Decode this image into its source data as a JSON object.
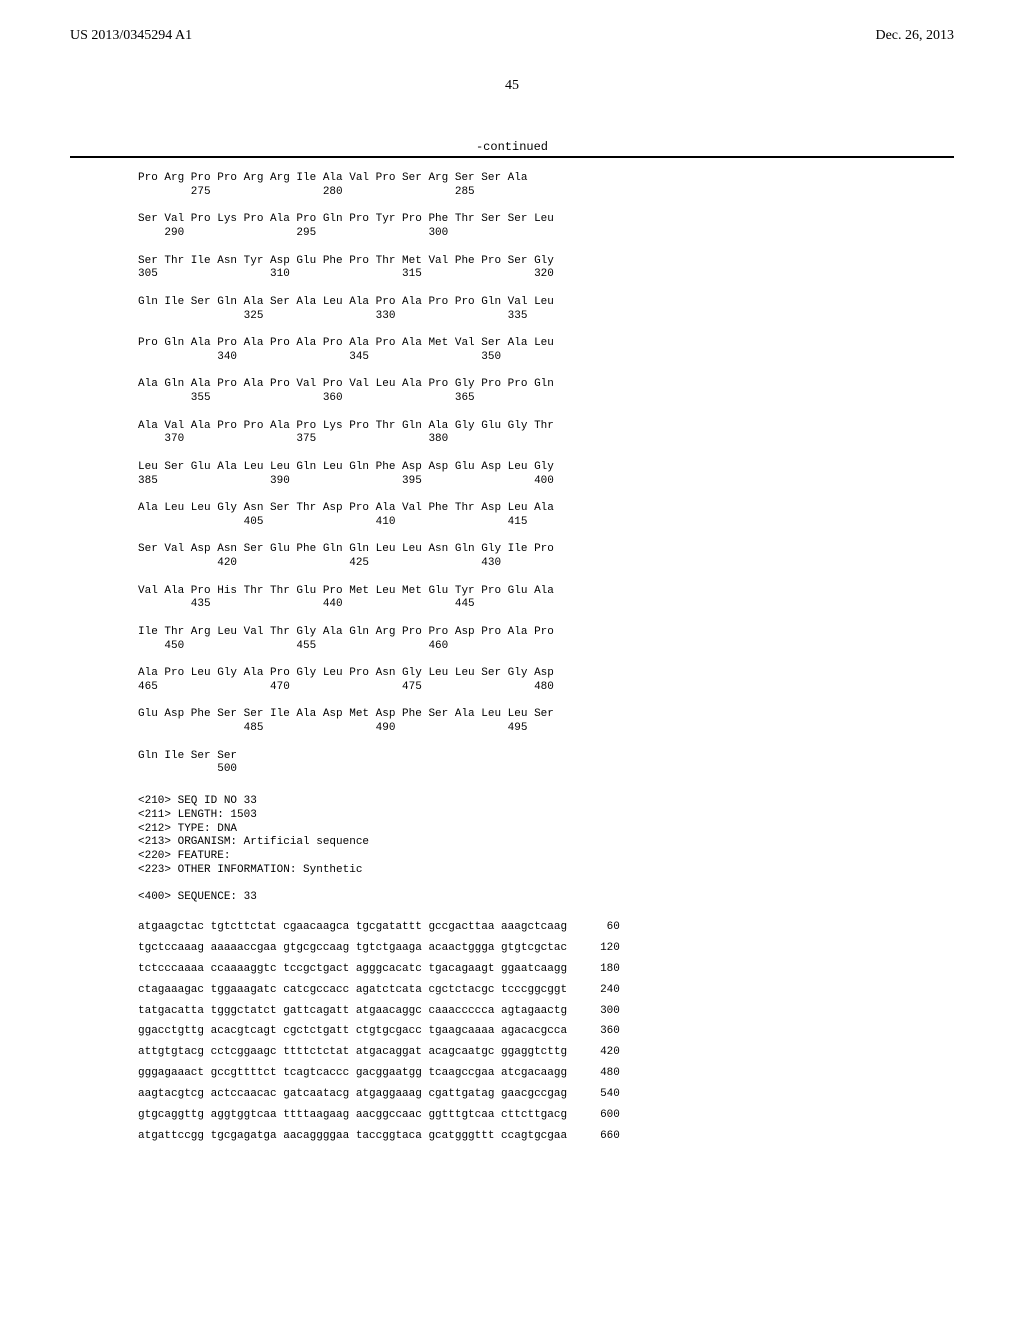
{
  "header": {
    "patent_number": "US 2013/0345294 A1",
    "pub_date": "Dec. 26, 2013"
  },
  "page_number": "45",
  "continued_label": "-continued",
  "protein_sequence": "Pro Arg Pro Pro Arg Arg Ile Ala Val Pro Ser Arg Ser Ser Ala\n        275                 280                 285\n\nSer Val Pro Lys Pro Ala Pro Gln Pro Tyr Pro Phe Thr Ser Ser Leu\n    290                 295                 300\n\nSer Thr Ile Asn Tyr Asp Glu Phe Pro Thr Met Val Phe Pro Ser Gly\n305                 310                 315                 320\n\nGln Ile Ser Gln Ala Ser Ala Leu Ala Pro Ala Pro Pro Gln Val Leu\n                325                 330                 335\n\nPro Gln Ala Pro Ala Pro Ala Pro Ala Pro Ala Met Val Ser Ala Leu\n            340                 345                 350\n\nAla Gln Ala Pro Ala Pro Val Pro Val Leu Ala Pro Gly Pro Pro Gln\n        355                 360                 365\n\nAla Val Ala Pro Pro Ala Pro Lys Pro Thr Gln Ala Gly Glu Gly Thr\n    370                 375                 380\n\nLeu Ser Glu Ala Leu Leu Gln Leu Gln Phe Asp Asp Glu Asp Leu Gly\n385                 390                 395                 400\n\nAla Leu Leu Gly Asn Ser Thr Asp Pro Ala Val Phe Thr Asp Leu Ala\n                405                 410                 415\n\nSer Val Asp Asn Ser Glu Phe Gln Gln Leu Leu Asn Gln Gly Ile Pro\n            420                 425                 430\n\nVal Ala Pro His Thr Thr Glu Pro Met Leu Met Glu Tyr Pro Glu Ala\n        435                 440                 445\n\nIle Thr Arg Leu Val Thr Gly Ala Gln Arg Pro Pro Asp Pro Ala Pro\n    450                 455                 460\n\nAla Pro Leu Gly Ala Pro Gly Leu Pro Asn Gly Leu Leu Ser Gly Asp\n465                 470                 475                 480\n\nGlu Asp Phe Ser Ser Ile Ala Asp Met Asp Phe Ser Ala Leu Leu Ser\n                485                 490                 495\n\nGln Ile Ser Ser\n            500",
  "seq_meta": "<210> SEQ ID NO 33\n<211> LENGTH: 1503\n<212> TYPE: DNA\n<213> ORGANISM: Artificial sequence\n<220> FEATURE:\n<223> OTHER INFORMATION: Synthetic\n\n<400> SEQUENCE: 33",
  "nucleotide_sequence": "atgaagctac tgtcttctat cgaacaagca tgcgatattt gccgacttaa aaagctcaag      60\ntgctccaaag aaaaaccgaa gtgcgccaag tgtctgaaga acaactggga gtgtcgctac     120\ntctcccaaaa ccaaaaggtc tccgctgact agggcacatc tgacagaagt ggaatcaagg     180\nctagaaagac tggaaagatc catcgccacc agatctcata cgctctacgc tcccggcggt     240\ntatgacatta tgggctatct gattcagatt atgaacaggc caaaccccca agtagaactg     300\nggacctgttg acacgtcagt cgctctgatt ctgtgcgacc tgaagcaaaa agacacgcca     360\nattgtgtacg cctcggaagc ttttctctat atgacaggat acagcaatgc ggaggtcttg     420\ngggagaaact gccgttttct tcagtcaccc gacggaatgg tcaagccgaa atcgacaagg     480\naagtacgtcg actccaacac gatcaatacg atgaggaaag cgattgatag gaacgccgag     540\ngtgcaggttg aggtggtcaa ttttaagaag aacggccaac ggtttgtcaa cttcttgacg     600\natgattccgg tgcgagatga aacaggggaa taccggtaca gcatgggttt ccagtgcgaa     660"
}
